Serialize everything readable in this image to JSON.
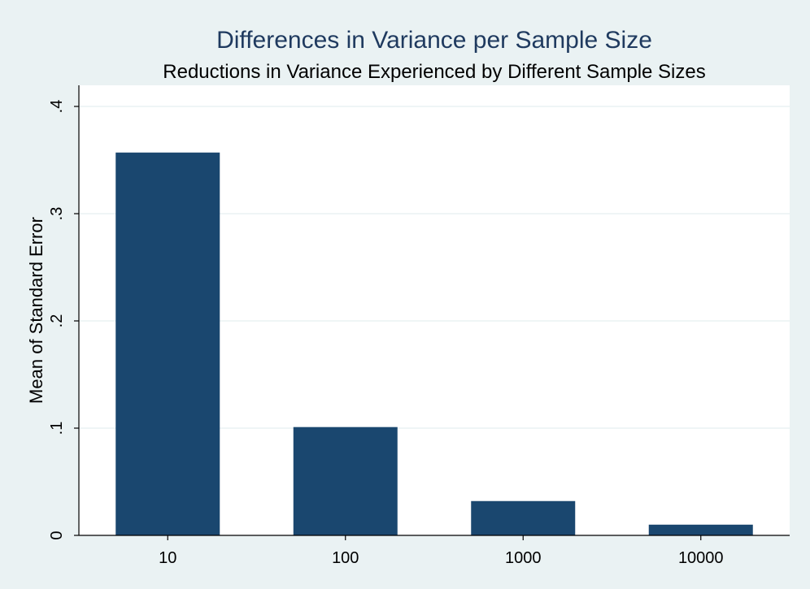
{
  "chart_data": {
    "type": "bar",
    "title": "Differences in Variance per Sample Size",
    "subtitle": "Reductions in Variance Experienced by Different Sample Sizes",
    "xlabel": "",
    "ylabel": "Mean of Standard Error",
    "categories": [
      "10",
      "100",
      "1000",
      "10000"
    ],
    "values": [
      0.357,
      0.101,
      0.032,
      0.01
    ],
    "ylim": [
      0,
      0.4
    ],
    "yticks": [
      0,
      0.1,
      0.2,
      0.3,
      0.4
    ],
    "ytick_labels": [
      "0",
      ".1",
      ".2",
      ".3",
      ".4"
    ],
    "grid": true,
    "legend": "none",
    "colors": {
      "bar": "#1a476f",
      "plot_background": "#ffffff",
      "page_background": "#eaf2f3",
      "grid": "#eaf2f3",
      "title": "#1f3a5f",
      "axis": "#000000"
    }
  }
}
